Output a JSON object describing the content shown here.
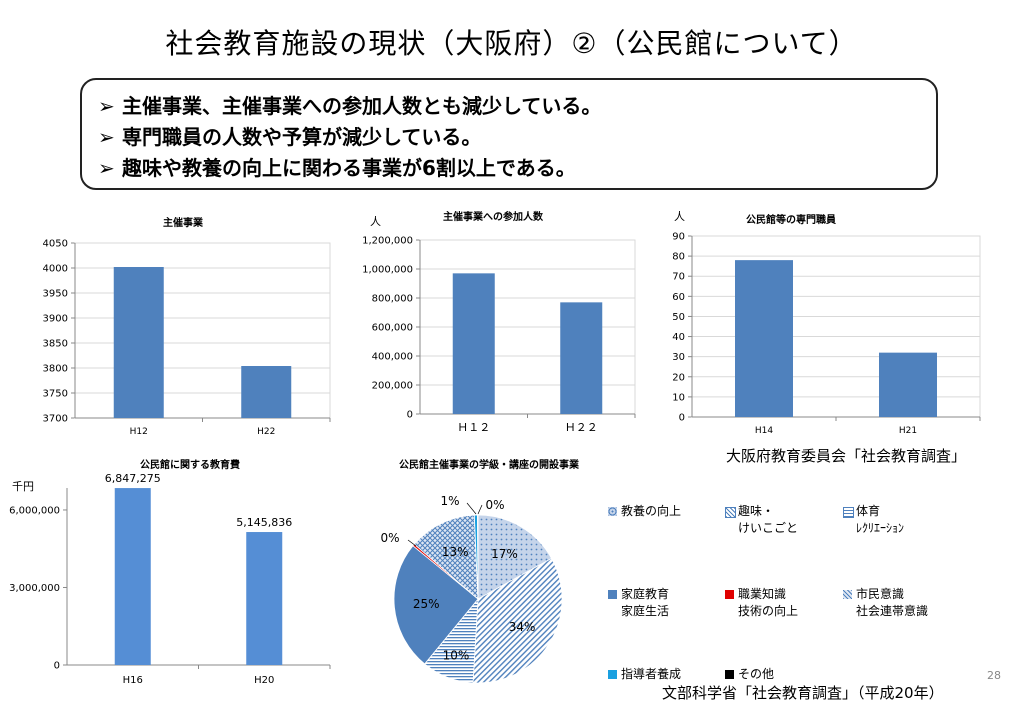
{
  "title": "社会教育施設の現状（大阪府）②（公民館について）",
  "bullets": [
    "主催事業、主催事業への参加人数とも減少している。",
    "専門職員の人数や予算が減少している。",
    "趣味や教養の向上に関わる事業が6割以上である。"
  ],
  "bullet_marker": "➢",
  "source_osaka": "大阪府教育委員会「社会教育調査」",
  "source_mext": "文部科学省「社会教育調査」（平成20年）",
  "page_number": "28",
  "colors": {
    "bar": "#4f81bd",
    "bar_light": "#558ed5",
    "grid": "#d9d9d9"
  },
  "chart_data": [
    {
      "type": "bar",
      "title": "主催事業",
      "categories": [
        "H12",
        "H22"
      ],
      "values": [
        4002,
        3804
      ],
      "ylim": [
        3700,
        4050
      ],
      "yticks": [
        "3700",
        "3750",
        "3800",
        "3850",
        "3900",
        "3950",
        "4000",
        "4050"
      ],
      "grid": true
    },
    {
      "type": "bar",
      "title": "主催事業への参加人数",
      "unit": "人",
      "categories": [
        "Ｈ１２",
        "Ｈ２２"
      ],
      "values": [
        970000,
        770000
      ],
      "ylim": [
        0,
        1200000
      ],
      "yticks": [
        "0",
        "200,000",
        "400,000",
        "600,000",
        "800,000",
        "1,000,000",
        "1,200,000"
      ],
      "grid": true
    },
    {
      "type": "bar",
      "title": "公民館等の専門職員",
      "unit": "人",
      "categories": [
        "H14",
        "H21"
      ],
      "values": [
        78,
        32
      ],
      "ylim": [
        0,
        90
      ],
      "yticks": [
        "0",
        "10",
        "20",
        "30",
        "40",
        "50",
        "60",
        "70",
        "80",
        "90"
      ],
      "grid": true
    },
    {
      "type": "bar",
      "title": "公民館に関する教育費",
      "unit": "千円",
      "categories": [
        "H16",
        "H20"
      ],
      "values": [
        6847275,
        5145836
      ],
      "data_labels": [
        "6,847,275",
        "5,145,836"
      ],
      "ylim": [
        0,
        6850000
      ],
      "yticks": [
        "0",
        "3,000,000",
        "6,000,000"
      ],
      "grid": false
    },
    {
      "type": "pie",
      "title": "公民館主催事業の学級・講座の開設事業",
      "slices": [
        {
          "name": "教養の向上",
          "value": 17,
          "label": "17%",
          "color": "#c5d4ea",
          "pattern": "dots"
        },
        {
          "name": "趣味・けいこごと",
          "value": 34,
          "label": "34%",
          "color": "#ffffff",
          "pattern": "diag"
        },
        {
          "name": "体育レクリエーション",
          "value": 10,
          "label": "10%",
          "color": "#ffffff",
          "pattern": "hlines"
        },
        {
          "name": "家庭教育家庭生活",
          "value": 25,
          "label": "25%",
          "color": "#4f81bd",
          "pattern": "solid"
        },
        {
          "name": "職業知識技術の向上",
          "value": 0.4,
          "label": "0%",
          "color": "#e00000",
          "pattern": "solid"
        },
        {
          "name": "市民意識社会連帯意識",
          "value": 13,
          "label": "13%",
          "color": "#6f90c0",
          "pattern": "cross"
        },
        {
          "name": "指導者養成",
          "value": 0.6,
          "label": "1%",
          "color": "#1aa0e0",
          "pattern": "solid"
        },
        {
          "name": "その他",
          "value": 0.1,
          "label": "0%",
          "color": "#000000",
          "pattern": "solid"
        }
      ],
      "legend": [
        [
          "教養の向上",
          ""
        ],
        [
          "趣味・",
          "けいこごと"
        ],
        [
          "体育",
          "ﾚｸﾘｴｰｼｮﾝ"
        ],
        [
          "家庭教育",
          "家庭生活"
        ],
        [
          "職業知識",
          "技術の向上"
        ],
        [
          "市民意識",
          "社会連帯意識"
        ],
        [
          "指導者養成",
          ""
        ],
        [
          "その他",
          ""
        ]
      ]
    }
  ]
}
